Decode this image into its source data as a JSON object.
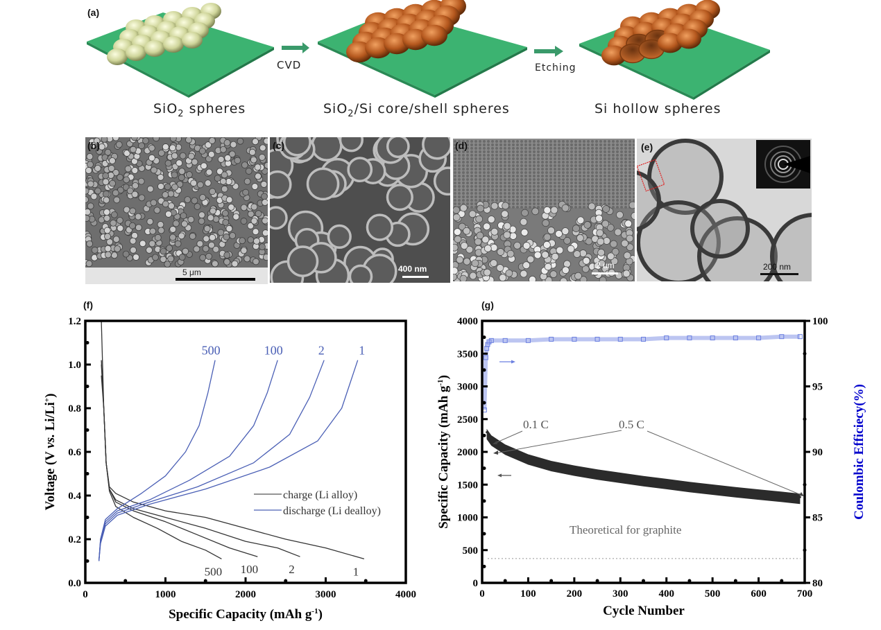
{
  "panels": {
    "a": "(a)",
    "b": "(b)",
    "c": "(c)",
    "d": "(d)",
    "e": "(e)",
    "f": "(f)",
    "g": "(g)"
  },
  "scheme": {
    "stage1_label": "SiO",
    "stage1_sub": "2",
    "stage1_rest": " spheres",
    "step1": "CVD",
    "stage2_label": "SiO",
    "stage2_sub": "2",
    "stage2_rest": "/Si core/shell spheres",
    "step2": "Etching",
    "stage3_label": "Si hollow spheres",
    "colors": {
      "substrate": "#3cb371",
      "silica": "#d6dba4",
      "silicon": "#b5581e",
      "arrow": "#3a9a6a"
    }
  },
  "micrographs": {
    "b_scale": "5 μm",
    "c_scale": "400 nm",
    "d_scale": "2 um",
    "e_scale": "200 nm"
  },
  "chart_data": [
    {
      "type": "line",
      "panel": "(f)",
      "xlabel": "Specific Capacity (mAh g",
      "xlabel_sup": "-1",
      "xlabel_end": ")",
      "ylabel": "Voltage (V vs. Li/Li",
      "ylabel_sup": "+",
      "ylabel_end": ")",
      "xlim": [
        0,
        4000
      ],
      "ylim": [
        0.0,
        1.2
      ],
      "xticks": [
        "0",
        "1000",
        "2000",
        "3000",
        "4000"
      ],
      "yticks": [
        "0.0",
        "0.2",
        "0.4",
        "0.6",
        "0.8",
        "1.0",
        "1.2"
      ],
      "legend": {
        "position": "center-right",
        "entries": [
          "charge (Li alloy)",
          "discharge (Li dealloy)"
        ]
      },
      "colors": {
        "charge": "#333333",
        "discharge": "#4a5fb5"
      },
      "series": [
        {
          "name": "charge cycle 1",
          "label": "1",
          "kind": "charge",
          "x": [
            200,
            230,
            260,
            300,
            380,
            600,
            1000,
            1500,
            2000,
            2500,
            3000,
            3480
          ],
          "y": [
            1.2,
            0.8,
            0.55,
            0.44,
            0.41,
            0.37,
            0.33,
            0.3,
            0.25,
            0.2,
            0.16,
            0.11
          ]
        },
        {
          "name": "charge cycle 2",
          "label": "2",
          "kind": "charge",
          "x": [
            200,
            230,
            260,
            300,
            380,
            600,
            1000,
            1500,
            2000,
            2400,
            2680
          ],
          "y": [
            1.02,
            0.8,
            0.55,
            0.43,
            0.38,
            0.34,
            0.3,
            0.25,
            0.19,
            0.16,
            0.12
          ]
        },
        {
          "name": "charge cycle 100",
          "label": "100",
          "kind": "charge",
          "x": [
            200,
            230,
            260,
            300,
            380,
            600,
            1000,
            1400,
            1800,
            2150
          ],
          "y": [
            1.0,
            0.8,
            0.55,
            0.43,
            0.37,
            0.33,
            0.28,
            0.22,
            0.16,
            0.12
          ]
        },
        {
          "name": "charge cycle 500",
          "label": "500",
          "kind": "charge",
          "x": [
            200,
            230,
            260,
            300,
            380,
            600,
            900,
            1200,
            1500,
            1700
          ],
          "y": [
            0.95,
            0.8,
            0.55,
            0.42,
            0.35,
            0.3,
            0.25,
            0.19,
            0.15,
            0.11
          ]
        },
        {
          "name": "discharge cycle 1",
          "label": "1",
          "kind": "discharge",
          "x": [
            170,
            190,
            250,
            400,
            800,
            1500,
            2300,
            2900,
            3200,
            3400
          ],
          "y": [
            0.1,
            0.18,
            0.26,
            0.31,
            0.36,
            0.43,
            0.53,
            0.65,
            0.8,
            1.02
          ]
        },
        {
          "name": "discharge cycle 2",
          "label": "2",
          "kind": "discharge",
          "x": [
            170,
            190,
            250,
            400,
            800,
            1400,
            2100,
            2550,
            2800,
            2980
          ],
          "y": [
            0.1,
            0.19,
            0.27,
            0.32,
            0.37,
            0.44,
            0.55,
            0.68,
            0.85,
            1.02
          ]
        },
        {
          "name": "discharge cycle 100",
          "label": "100",
          "kind": "discharge",
          "x": [
            170,
            190,
            250,
            400,
            800,
            1300,
            1800,
            2100,
            2270,
            2400
          ],
          "y": [
            0.1,
            0.2,
            0.28,
            0.33,
            0.38,
            0.47,
            0.58,
            0.72,
            0.87,
            1.02
          ]
        },
        {
          "name": "discharge cycle 500",
          "label": "500",
          "kind": "discharge",
          "x": [
            170,
            190,
            250,
            400,
            700,
            1000,
            1250,
            1420,
            1530,
            1620
          ],
          "y": [
            0.1,
            0.2,
            0.29,
            0.34,
            0.41,
            0.49,
            0.6,
            0.72,
            0.87,
            1.02
          ]
        }
      ]
    },
    {
      "type": "scatter",
      "panel": "(g)",
      "xlabel": "Cycle Number",
      "ylabel": "Specific Capacity (mAh g",
      "ylabel_sup": "-1",
      "ylabel_end": ")",
      "y2label": "Coulombic Efficiecy(%)",
      "xlim": [
        0,
        700
      ],
      "ylim": [
        0,
        4000
      ],
      "y2lim": [
        80,
        100
      ],
      "xticks": [
        "0",
        "100",
        "200",
        "300",
        "400",
        "500",
        "600",
        "700"
      ],
      "yticks": [
        "0",
        "500",
        "1000",
        "1500",
        "2000",
        "2500",
        "3000",
        "3500",
        "4000"
      ],
      "y2ticks": [
        "80",
        "85",
        "90",
        "95",
        "100"
      ],
      "colors": {
        "capacity": "#2b2b2b",
        "efficiency": "#6b7fe0",
        "y2label": "#0000cc",
        "annotation": "#555555"
      },
      "annotations": {
        "rate1": "0.1 C",
        "rate2": "0.5 C",
        "reference": "Theoretical for graphite"
      },
      "reference_line_value": 372,
      "series": [
        {
          "name": "Specific Capacity",
          "axis": "left",
          "x": [
            10,
            20,
            50,
            100,
            150,
            200,
            250,
            300,
            350,
            400,
            450,
            500,
            550,
            600,
            650,
            690
          ],
          "y": [
            2300,
            2200,
            2060,
            1910,
            1810,
            1740,
            1680,
            1630,
            1580,
            1535,
            1490,
            1450,
            1410,
            1375,
            1340,
            1310
          ]
        },
        {
          "name": "Coulombic Efficiency",
          "axis": "right",
          "x": [
            5,
            8,
            10,
            12,
            15,
            20,
            50,
            100,
            150,
            200,
            250,
            300,
            350,
            400,
            450,
            500,
            550,
            600,
            650,
            690
          ],
          "y": [
            93.2,
            97.2,
            97.9,
            98.2,
            98.4,
            98.5,
            98.5,
            98.5,
            98.6,
            98.6,
            98.6,
            98.6,
            98.6,
            98.7,
            98.7,
            98.7,
            98.7,
            98.7,
            98.8,
            98.8
          ]
        }
      ]
    }
  ]
}
